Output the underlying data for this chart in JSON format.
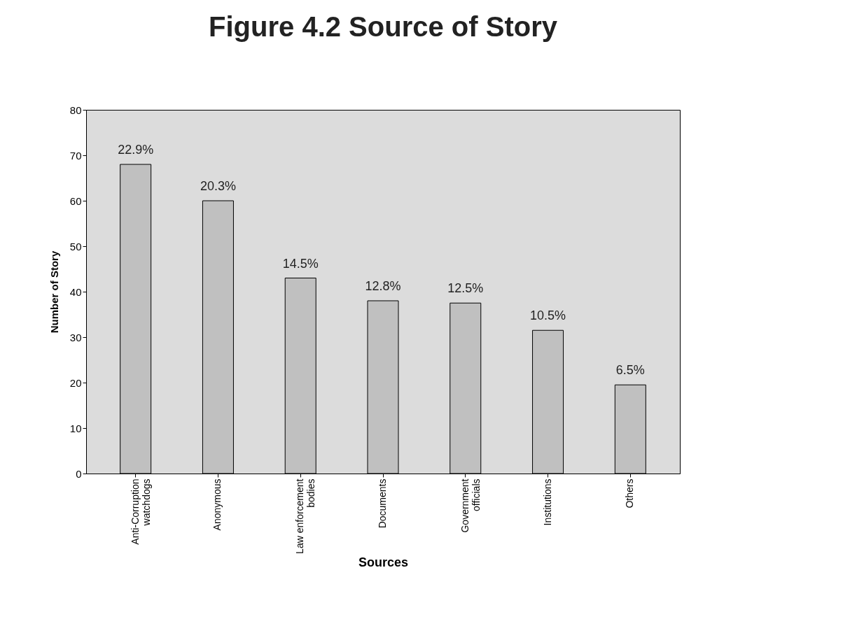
{
  "chart_data": {
    "type": "bar",
    "title": "Figure 4.2 Source of Story",
    "xlabel": "Sources",
    "ylabel": "Number of Story",
    "categories": [
      "Anti-Corruption watchdogs",
      "Anonymous",
      "Law enforcement bodies",
      "Documents",
      "Government officials",
      "Institutions",
      "Others"
    ],
    "values": [
      68,
      60,
      43,
      38,
      37.5,
      31.5,
      19.5
    ],
    "annotations": [
      {
        "text": "22.9%",
        "x": "Anti-Corruption watchdogs",
        "y": 68
      },
      {
        "text": "20.3%",
        "x": "Anonymous",
        "y": 60
      },
      {
        "text": "14.5%",
        "x": "Law enforcement bodies",
        "y": 43
      },
      {
        "text": "12.8%",
        "x": "Documents",
        "y": 38
      },
      {
        "text": "12.5%",
        "x": "Government officials",
        "y": 37.5
      },
      {
        "text": "10.5%",
        "x": "Institutions",
        "y": 31.5
      },
      {
        "text": "6.5%",
        "x": "Others",
        "y": 19.5
      }
    ],
    "color": "#c0c0c0",
    "ylim": [
      0,
      80
    ],
    "yticks": [
      0,
      10,
      20,
      30,
      40,
      50,
      60,
      70,
      80
    ],
    "grid": false
  }
}
